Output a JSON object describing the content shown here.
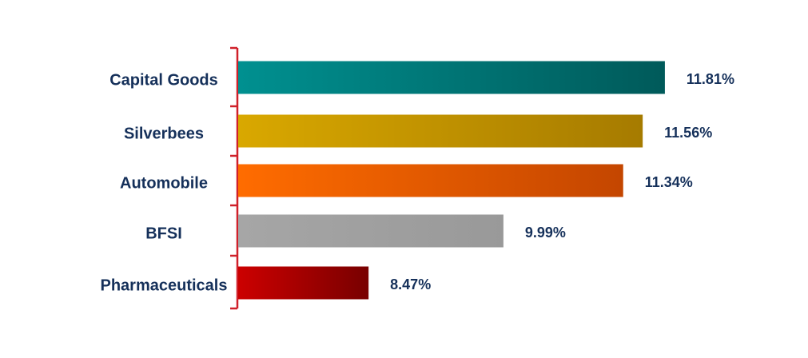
{
  "chart_data": {
    "type": "bar",
    "orientation": "horizontal",
    "categories": [
      "Capital Goods",
      "Silverbees",
      "Automobile",
      "BFSI",
      "Pharmaceuticals"
    ],
    "values": [
      11.81,
      11.56,
      11.34,
      9.99,
      8.47
    ],
    "value_labels": [
      "11.81%",
      "11.56%",
      "11.34%",
      "9.99%",
      "8.47%"
    ],
    "colors": [
      [
        "#009090",
        "#005a5a"
      ],
      [
        "#d9a800",
        "#a67b00"
      ],
      [
        "#ff6c00",
        "#c44600"
      ],
      [
        "#a6a6a6",
        "#999999"
      ],
      [
        "#cc0000",
        "#780000"
      ]
    ],
    "xlim": [
      7,
      12
    ]
  }
}
